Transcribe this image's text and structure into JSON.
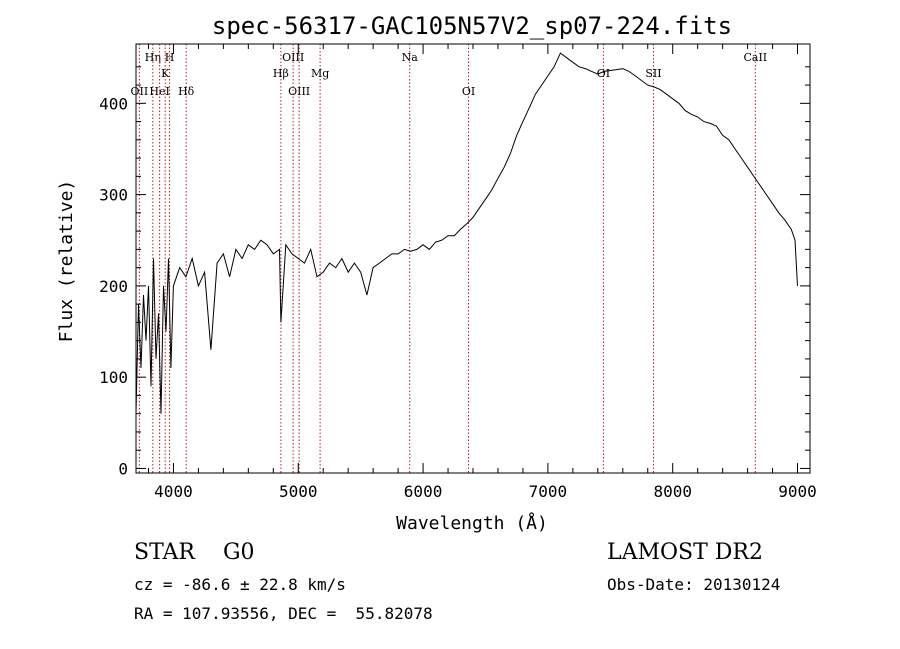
{
  "chart_data": {
    "type": "line",
    "title": "spec-56317-GAC105N57V2_sp07-224.fits",
    "xlabel": "Wavelength (Å)",
    "ylabel": "Flux (relative)",
    "xlim": [
      3700,
      9100
    ],
    "ylim": [
      -5,
      465
    ],
    "xticks": [
      4000,
      5000,
      6000,
      7000,
      8000,
      9000
    ],
    "xtick_labels": [
      "4000",
      "5000",
      "6000",
      "7000",
      "8000",
      "9000"
    ],
    "yticks": [
      0,
      100,
      200,
      300,
      400
    ],
    "ytick_labels": [
      "0",
      "100",
      "200",
      "300",
      "400"
    ],
    "grid": false,
    "line_color": "#000000",
    "marker_color": "#b22222",
    "series": [
      {
        "x": [
          3700,
          3720,
          3740,
          3760,
          3780,
          3800,
          3820,
          3840,
          3860,
          3880,
          3900,
          3920,
          3940,
          3960,
          3980,
          4000,
          4050,
          4100,
          4150,
          4200,
          4250,
          4300,
          4350,
          4400,
          4450,
          4500,
          4550,
          4600,
          4650,
          4700,
          4750,
          4800,
          4850,
          4861,
          4900,
          4950,
          5000,
          5050,
          5100,
          5150,
          5200,
          5250,
          5300,
          5350,
          5400,
          5450,
          5500,
          5550,
          5600,
          5650,
          5700,
          5750,
          5800,
          5850,
          5900,
          5950,
          6000,
          6050,
          6100,
          6150,
          6200,
          6250,
          6300,
          6350,
          6400,
          6450,
          6500,
          6550,
          6600,
          6650,
          6700,
          6750,
          6800,
          6850,
          6900,
          6950,
          7000,
          7050,
          7100,
          7150,
          7200,
          7250,
          7300,
          7350,
          7400,
          7450,
          7500,
          7550,
          7600,
          7650,
          7700,
          7750,
          7800,
          7850,
          7900,
          7950,
          8000,
          8050,
          8100,
          8150,
          8200,
          8250,
          8300,
          8350,
          8400,
          8450,
          8500,
          8550,
          8600,
          8650,
          8700,
          8750,
          8800,
          8850,
          8900,
          8950,
          8980,
          9000
        ],
        "y": [
          60,
          180,
          110,
          190,
          140,
          200,
          90,
          230,
          120,
          170,
          60,
          200,
          150,
          230,
          110,
          200,
          220,
          210,
          230,
          200,
          215,
          130,
          225,
          235,
          210,
          240,
          230,
          245,
          240,
          250,
          245,
          235,
          240,
          160,
          245,
          235,
          230,
          225,
          240,
          210,
          215,
          225,
          220,
          230,
          215,
          225,
          215,
          190,
          220,
          225,
          230,
          235,
          235,
          240,
          238,
          240,
          245,
          240,
          248,
          250,
          255,
          255,
          262,
          268,
          275,
          285,
          295,
          305,
          318,
          330,
          345,
          365,
          380,
          395,
          410,
          420,
          430,
          440,
          455,
          450,
          445,
          440,
          438,
          435,
          432,
          435,
          436,
          437,
          438,
          435,
          430,
          425,
          420,
          418,
          415,
          410,
          405,
          400,
          392,
          388,
          385,
          380,
          378,
          375,
          365,
          360,
          350,
          340,
          330,
          320,
          310,
          300,
          290,
          280,
          272,
          262,
          250,
          200
        ]
      }
    ],
    "line_markers": [
      {
        "label": "OII",
        "x": 3727,
        "row": 3
      },
      {
        "label": "Hη",
        "x": 3835,
        "row": 1
      },
      {
        "label": "HeI",
        "x": 3889,
        "row": 3
      },
      {
        "label": "K",
        "x": 3934,
        "row": 2
      },
      {
        "label": "H",
        "x": 3969,
        "row": 1
      },
      {
        "label": "Hδ",
        "x": 4102,
        "row": 3
      },
      {
        "label": "Hβ",
        "x": 4861,
        "row": 2
      },
      {
        "label": "OIII",
        "x": 4959,
        "row": 1
      },
      {
        "label": "OIII",
        "x": 5007,
        "row": 3
      },
      {
        "label": "Mg",
        "x": 5175,
        "row": 2
      },
      {
        "label": "Na",
        "x": 5893,
        "row": 1
      },
      {
        "label": "OI",
        "x": 6364,
        "row": 3
      },
      {
        "label": "OI",
        "x": 7445,
        "row": 2
      },
      {
        "label": "SII",
        "x": 7846,
        "row": 2
      },
      {
        "label": "CaII",
        "x": 8662,
        "row": 1
      }
    ]
  },
  "info": {
    "class_line": "STAR    G0",
    "cz_line": "cz = -86.6 ± 22.8 km/s",
    "radec_line": "RA = 107.93556, DEC =  55.82078",
    "survey": "LAMOST DR2",
    "obs_date": "Obs-Date: 20130124"
  }
}
